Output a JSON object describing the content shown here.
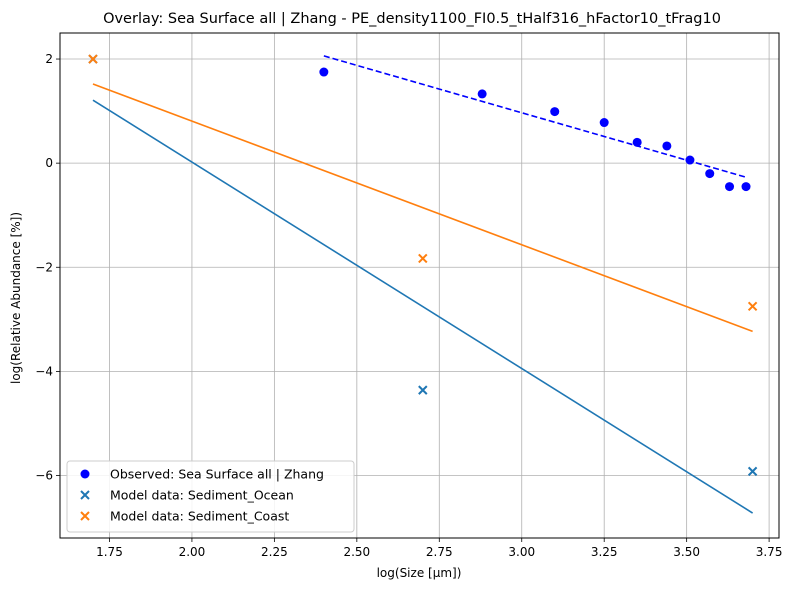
{
  "chart_data": {
    "type": "scatter",
    "title": "Overlay: Sea Surface all | Zhang - PE_density1100_FI0.5_tHalf316_hFactor10_tFrag10",
    "xlabel": "log(Size [µm])",
    "ylabel": "log(Relative Abundance [%])",
    "xlim": [
      1.6,
      3.78
    ],
    "ylim": [
      -7.2,
      2.5
    ],
    "xticks": [
      1.75,
      2.0,
      2.25,
      2.5,
      2.75,
      3.0,
      3.25,
      3.5,
      3.75
    ],
    "xtick_labels": [
      "1.75",
      "2.00",
      "2.25",
      "2.50",
      "2.75",
      "3.00",
      "3.25",
      "3.50",
      "3.75"
    ],
    "yticks": [
      -6,
      -4,
      -2,
      0,
      2
    ],
    "ytick_labels": [
      "−6",
      "−4",
      "−2",
      "0",
      "2"
    ],
    "grid": true,
    "legend_position": "lower-left",
    "series": [
      {
        "name": "Observed: Sea Surface all | Zhang",
        "kind": "scatter",
        "marker": "circle",
        "color": "#0000ff",
        "x": [
          2.4,
          2.88,
          3.1,
          3.25,
          3.35,
          3.44,
          3.51,
          3.57,
          3.63,
          3.68
        ],
        "y": [
          1.75,
          1.33,
          0.99,
          0.78,
          0.4,
          0.33,
          0.06,
          -0.2,
          -0.45,
          -0.45
        ]
      },
      {
        "name": "Model data: Sediment_Ocean",
        "kind": "scatter",
        "marker": "x",
        "color": "#1f77b4",
        "x": [
          1.7,
          2.7,
          3.7
        ],
        "y": [
          2.0,
          -4.36,
          -5.92
        ]
      },
      {
        "name": "Model data: Sediment_Coast",
        "kind": "scatter",
        "marker": "x",
        "color": "#ff7f0e",
        "x": [
          1.7,
          2.7,
          3.7
        ],
        "y": [
          2.0,
          -1.83,
          -2.75
        ]
      },
      {
        "kind": "line",
        "style": "dashed",
        "color": "#0000ff",
        "x": [
          2.4,
          3.68
        ],
        "y": [
          2.06,
          -0.27
        ]
      },
      {
        "kind": "line",
        "style": "solid",
        "color": "#1f77b4",
        "x": [
          1.7,
          3.7
        ],
        "y": [
          1.21,
          -6.72
        ]
      },
      {
        "kind": "line",
        "style": "solid",
        "color": "#ff7f0e",
        "x": [
          1.7,
          3.7
        ],
        "y": [
          1.52,
          -3.23
        ]
      }
    ]
  }
}
